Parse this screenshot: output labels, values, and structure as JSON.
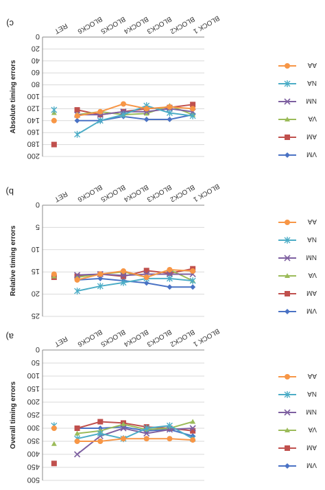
{
  "figure": {
    "orientation": "rotated-180",
    "colors": {
      "VM": "#4a72c4",
      "AM": "#c0504d",
      "VA": "#9bbb59",
      "NM": "#7d5fa0",
      "NA": "#4bacc6",
      "AA": "#f79646"
    }
  },
  "chart_data": [
    {
      "panel_label": "a)",
      "type": "line",
      "ylabel": "Overall timing errors",
      "categories": [
        "BLOCK 1",
        "BLOCK2",
        "BLOCK3",
        "BLOCK4",
        "BLOCK5",
        "BLOCK6",
        "RET"
      ],
      "yticks": [
        "0",
        "50",
        "100",
        "150",
        "200",
        "250",
        "300",
        "350",
        "400",
        "450",
        "500"
      ],
      "ylim": [
        0,
        500
      ],
      "legend_position": "right",
      "series": [
        {
          "name": "VM",
          "color": "#4a72c4",
          "marker": "diamond",
          "values": [
            330,
            305,
            310,
            295,
            300,
            300,
            null
          ]
        },
        {
          "name": "AM",
          "color": "#c0504d",
          "marker": "square",
          "values": [
            310,
            300,
            295,
            280,
            275,
            300,
            435
          ]
        },
        {
          "name": "VA",
          "color": "#9bbb59",
          "marker": "triangle",
          "values": [
            275,
            300,
            305,
            285,
            310,
            320,
            360
          ]
        },
        {
          "name": "NM",
          "color": "#7d5fa0",
          "marker": "x",
          "values": [
            300,
            305,
            320,
            300,
            330,
            400,
            null
          ]
        },
        {
          "name": "NA",
          "color": "#4bacc6",
          "marker": "star",
          "values": [
            340,
            290,
            300,
            340,
            320,
            340,
            290
          ]
        },
        {
          "name": "AA",
          "color": "#f79646",
          "marker": "circle",
          "values": [
            345,
            340,
            340,
            340,
            350,
            350,
            300
          ]
        }
      ]
    },
    {
      "panel_label": "b)",
      "type": "line",
      "ylabel": "Relative timing errors",
      "categories": [
        "BLOCK 1",
        "BLOCK2",
        "BLOCK3",
        "BLOCK4",
        "BLOCK5",
        "BLOCK6",
        "RET"
      ],
      "yticks": [
        "0",
        "5",
        "10",
        "15",
        "20",
        "25"
      ],
      "ylim": [
        0,
        25
      ],
      "legend_position": "right",
      "series": [
        {
          "name": "VM",
          "color": "#4a72c4",
          "marker": "diamond",
          "values": [
            18.4,
            18.4,
            17.5,
            17.0,
            16.5,
            16.8,
            null
          ]
        },
        {
          "name": "AM",
          "color": "#c0504d",
          "marker": "square",
          "values": [
            14.3,
            15.3,
            14.7,
            16.0,
            15.5,
            16.0,
            16.2
          ]
        },
        {
          "name": "VA",
          "color": "#9bbb59",
          "marker": "triangle",
          "values": [
            17.0,
            14.5,
            16.2,
            15.0,
            15.5,
            16.2,
            16.0
          ]
        },
        {
          "name": "NM",
          "color": "#7d5fa0",
          "marker": "x",
          "values": [
            15.5,
            15.5,
            15.5,
            15.8,
            15.5,
            15.7,
            null
          ]
        },
        {
          "name": "NA",
          "color": "#4bacc6",
          "marker": "star",
          "values": [
            17.0,
            16.5,
            16.5,
            17.4,
            18.2,
            19.3,
            null
          ]
        },
        {
          "name": "AA",
          "color": "#f79646",
          "marker": "circle",
          "values": [
            14.8,
            14.5,
            16.2,
            14.8,
            15.5,
            16.8,
            15.5
          ]
        }
      ]
    },
    {
      "panel_label": "c)",
      "type": "line",
      "ylabel": "Absolute timing errors",
      "categories": [
        "BLOCK 1",
        "BLOCK2",
        "BLOCK3",
        "BLOCK4",
        "BLOCK5",
        "BLOCK6",
        "RET"
      ],
      "yticks": [
        "0",
        "20",
        "40",
        "60",
        "80",
        "100",
        "120",
        "140",
        "160",
        "180",
        "200"
      ],
      "ylim": [
        0,
        200
      ],
      "legend_position": "right",
      "series": [
        {
          "name": "VM",
          "color": "#4a72c4",
          "marker": "diamond",
          "values": [
            130,
            138,
            138,
            133,
            140,
            140,
            null
          ]
        },
        {
          "name": "AM",
          "color": "#c0504d",
          "marker": "square",
          "values": [
            113,
            118,
            120,
            125,
            130,
            122,
            180
          ]
        },
        {
          "name": "VA",
          "color": "#9bbb59",
          "marker": "triangle",
          "values": [
            130,
            115,
            128,
            130,
            125,
            130,
            127
          ]
        },
        {
          "name": "NM",
          "color": "#7d5fa0",
          "marker": "x",
          "values": [
            125,
            120,
            125,
            125,
            130,
            130,
            null
          ]
        },
        {
          "name": "NA",
          "color": "#4bacc6",
          "marker": "star",
          "values": [
            132,
            127,
            115,
            130,
            140,
            163,
            122
          ]
        },
        {
          "name": "AA",
          "color": "#f79646",
          "marker": "circle",
          "values": [
            120,
            117,
            120,
            112,
            125,
            132,
            140
          ]
        }
      ]
    }
  ]
}
